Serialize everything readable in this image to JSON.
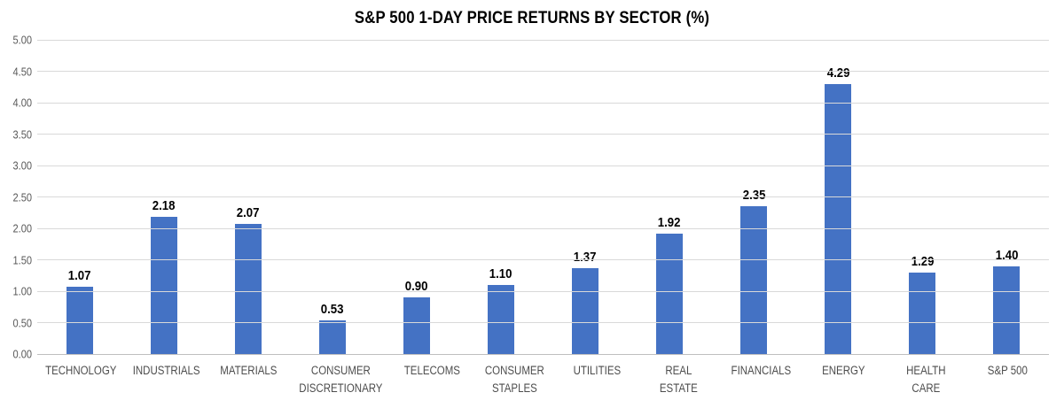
{
  "chart_data": {
    "type": "bar",
    "title": "S&P 500 1-DAY PRICE RETURNS BY SECTOR (%)",
    "categories": [
      "TECHNOLOGY",
      "INDUSTRIALS",
      "MATERIALS",
      "CONSUMER DISCRETIONARY",
      "TELECOMS",
      "CONSUMER STAPLES",
      "UTILITIES",
      "REAL ESTATE",
      "FINANCIALS",
      "ENERGY",
      "HEALTH CARE",
      "S&P 500"
    ],
    "values": [
      1.07,
      2.18,
      2.07,
      0.53,
      0.9,
      1.1,
      1.37,
      1.92,
      2.35,
      4.29,
      1.29,
      1.4
    ],
    "value_labels": [
      "1.07",
      "2.18",
      "2.07",
      "0.53",
      "0.90",
      "1.10",
      "1.37",
      "1.92",
      "2.35",
      "4.29",
      "1.29",
      "1.40"
    ],
    "xlabel": "",
    "ylabel": "",
    "ylim": [
      0,
      5
    ],
    "ytick_step": 0.5,
    "ytick_labels": [
      "0.00",
      "0.50",
      "1.00",
      "1.50",
      "2.00",
      "2.50",
      "3.00",
      "3.50",
      "4.00",
      "4.50",
      "5.00"
    ],
    "grid": true,
    "legend_position": "none"
  },
  "colors": {
    "bar": "#4472c4",
    "gridline": "#d9d9d9",
    "baseline": "#bfbfbf",
    "axis_text": "#595959",
    "category_text": "#4d4d4d",
    "title_text": "#000000",
    "value_label_text": "#000000",
    "background": "#ffffff"
  }
}
